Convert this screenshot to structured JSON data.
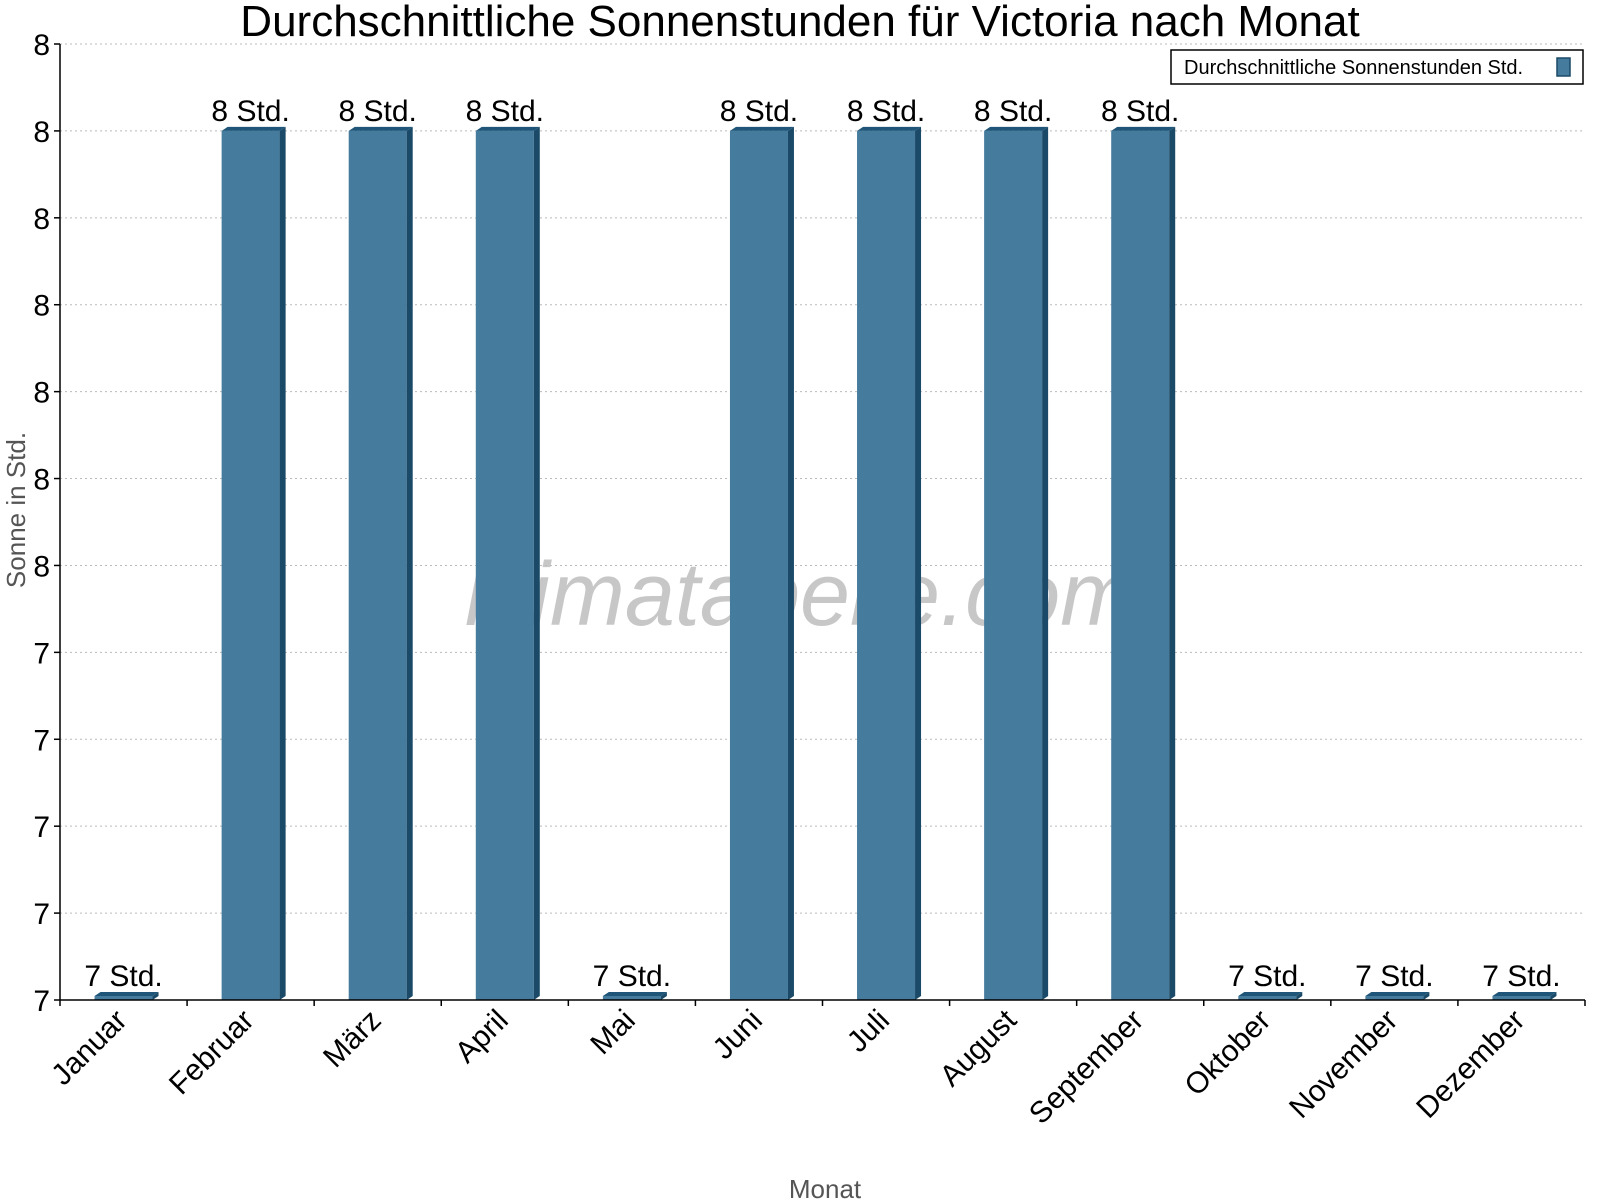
{
  "chart_data": {
    "type": "bar",
    "title": "Durchschnittliche Sonnenstunden für Victoria nach Monat",
    "xlabel": "Monat",
    "ylabel": "Sonne in Std.",
    "categories": [
      "Januar",
      "Februar",
      "März",
      "April",
      "Mai",
      "Juni",
      "Juli",
      "August",
      "September",
      "Oktober",
      "November",
      "Dezember"
    ],
    "series": [
      {
        "name": "Durchschnittliche Sonnenstunden Std.",
        "values": [
          7.0,
          8.0,
          8.0,
          8.0,
          7.0,
          8.0,
          8.0,
          8.0,
          8.0,
          7.0,
          7.0,
          7.0
        ],
        "labels": [
          "7 Std.",
          "8 Std.",
          "8 Std.",
          "8 Std.",
          "7 Std.",
          "8 Std.",
          "8 Std.",
          "8 Std.",
          "8 Std.",
          "7 Std.",
          "7 Std.",
          "7 Std."
        ],
        "color": "#457b9d"
      }
    ],
    "ylim": [
      7.0,
      8.1
    ],
    "yticks": [
      7.0,
      7.1,
      7.2,
      7.3,
      7.4,
      7.5,
      7.6,
      7.7,
      7.8,
      7.9,
      8.0,
      8.1
    ],
    "ytick_labels": [
      "7",
      "7",
      "7",
      "7",
      "7",
      "8",
      "8",
      "8",
      "8",
      "8",
      "8",
      "8"
    ],
    "grid": true,
    "legend": "top-right",
    "watermark": "klimatabelle.com"
  }
}
